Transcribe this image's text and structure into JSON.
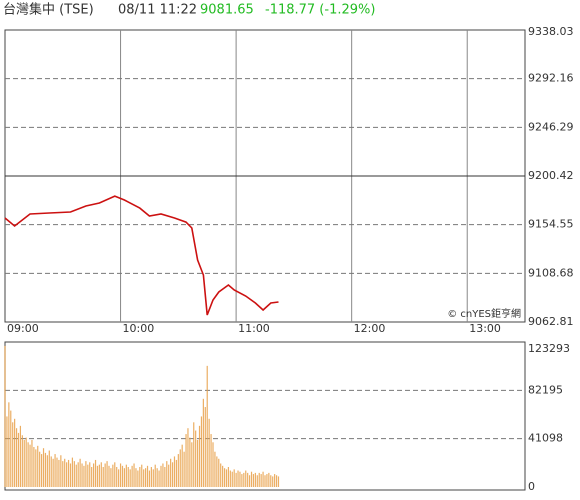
{
  "header": {
    "title": "台灣集中 (TSE)",
    "time": "08/11 11:22",
    "price": "9081.65",
    "change": "-118.77 (-1.29%)"
  },
  "chart_data": [
    {
      "type": "line",
      "color": "#cc1111",
      "watermark": "© cnYES鉅亨網",
      "xlim": [
        0,
        270
      ],
      "xticks": [
        {
          "value": 0,
          "label": "09:00"
        },
        {
          "value": 60,
          "label": "10:00"
        },
        {
          "value": 120,
          "label": "11:00"
        },
        {
          "value": 180,
          "label": "12:00"
        },
        {
          "value": 240,
          "label": "13:00"
        }
      ],
      "ylim": [
        9062.81,
        9338.03
      ],
      "yticks": [
        9062.81,
        9108.68,
        9154.55,
        9200.42,
        9246.29,
        9292.16,
        9338.03
      ],
      "reference": 9200.42,
      "grid": true,
      "x": [
        0,
        5,
        13,
        23,
        34,
        42,
        49,
        57,
        62,
        70,
        75,
        81,
        88,
        94,
        97,
        100,
        103,
        105,
        108,
        111,
        116,
        119,
        125,
        130,
        134,
        138,
        142
      ],
      "values": [
        9160.8,
        9153.3,
        9164.6,
        9165.5,
        9166.5,
        9172.1,
        9175.0,
        9181.5,
        9177.8,
        9170.2,
        9162.7,
        9164.6,
        9160.8,
        9157.0,
        9151.4,
        9121.2,
        9107.1,
        9069.4,
        9083.5,
        9091.1,
        9097.7,
        9093.0,
        9087.3,
        9080.7,
        9074.1,
        9080.7,
        9081.65
      ]
    },
    {
      "type": "bar",
      "color": "#e8a048",
      "xlim": [
        0,
        270
      ],
      "ylim": [
        0,
        123293
      ],
      "yticks": [
        0,
        41098,
        82195,
        123293
      ],
      "grid": true,
      "x": [
        0,
        1,
        2,
        3,
        4,
        5,
        6,
        7,
        8,
        9,
        10,
        11,
        12,
        13,
        14,
        15,
        16,
        17,
        18,
        19,
        20,
        21,
        22,
        23,
        24,
        25,
        26,
        27,
        28,
        29,
        30,
        31,
        32,
        33,
        34,
        35,
        36,
        37,
        38,
        39,
        40,
        41,
        42,
        43,
        44,
        45,
        46,
        47,
        48,
        49,
        50,
        51,
        52,
        53,
        54,
        55,
        56,
        57,
        58,
        59,
        60,
        61,
        62,
        63,
        64,
        65,
        66,
        67,
        68,
        69,
        70,
        71,
        72,
        73,
        74,
        75,
        76,
        77,
        78,
        79,
        80,
        81,
        82,
        83,
        84,
        85,
        86,
        87,
        88,
        89,
        90,
        91,
        92,
        93,
        94,
        95,
        96,
        97,
        98,
        99,
        100,
        101,
        102,
        103,
        104,
        105,
        106,
        107,
        108,
        109,
        110,
        111,
        112,
        113,
        114,
        115,
        116,
        117,
        118,
        119,
        120,
        121,
        122,
        123,
        124,
        125,
        126,
        127,
        128,
        129,
        130,
        131,
        132,
        133,
        134,
        135,
        136,
        137,
        138,
        139,
        140,
        141,
        142
      ],
      "values": [
        120000,
        60000,
        72000,
        65000,
        55000,
        58000,
        50000,
        46000,
        52000,
        44000,
        40000,
        42000,
        38000,
        36000,
        40000,
        34000,
        32000,
        35000,
        30000,
        28000,
        33000,
        29000,
        27000,
        31000,
        26000,
        24000,
        28000,
        25000,
        23000,
        27000,
        22000,
        24000,
        21000,
        23000,
        20000,
        25000,
        22000,
        19000,
        21000,
        24000,
        20000,
        18000,
        22000,
        19000,
        21000,
        17000,
        20000,
        23000,
        18000,
        19000,
        21000,
        17000,
        20000,
        22000,
        18000,
        16000,
        19000,
        21000,
        17000,
        15000,
        20000,
        18000,
        16000,
        19000,
        17000,
        15000,
        18000,
        20000,
        16000,
        14000,
        17000,
        19000,
        15000,
        16000,
        18000,
        14000,
        17000,
        15000,
        19000,
        16000,
        14000,
        18000,
        20000,
        17000,
        22000,
        19000,
        24000,
        21000,
        26000,
        23000,
        28000,
        32000,
        36000,
        30000,
        45000,
        50000,
        42000,
        38000,
        55000,
        48000,
        40000,
        52000,
        60000,
        75000,
        68000,
        103000,
        58000,
        45000,
        38000,
        30000,
        26000,
        24000,
        20000,
        18000,
        16000,
        15000,
        17000,
        14000,
        13000,
        15000,
        12000,
        14000,
        13000,
        11000,
        12000,
        14000,
        12000,
        10000,
        13000,
        11000,
        12000,
        10000,
        12000,
        11000,
        13000,
        10000,
        11000,
        12000,
        10000,
        9000,
        11000,
        10000,
        9000
      ]
    }
  ]
}
